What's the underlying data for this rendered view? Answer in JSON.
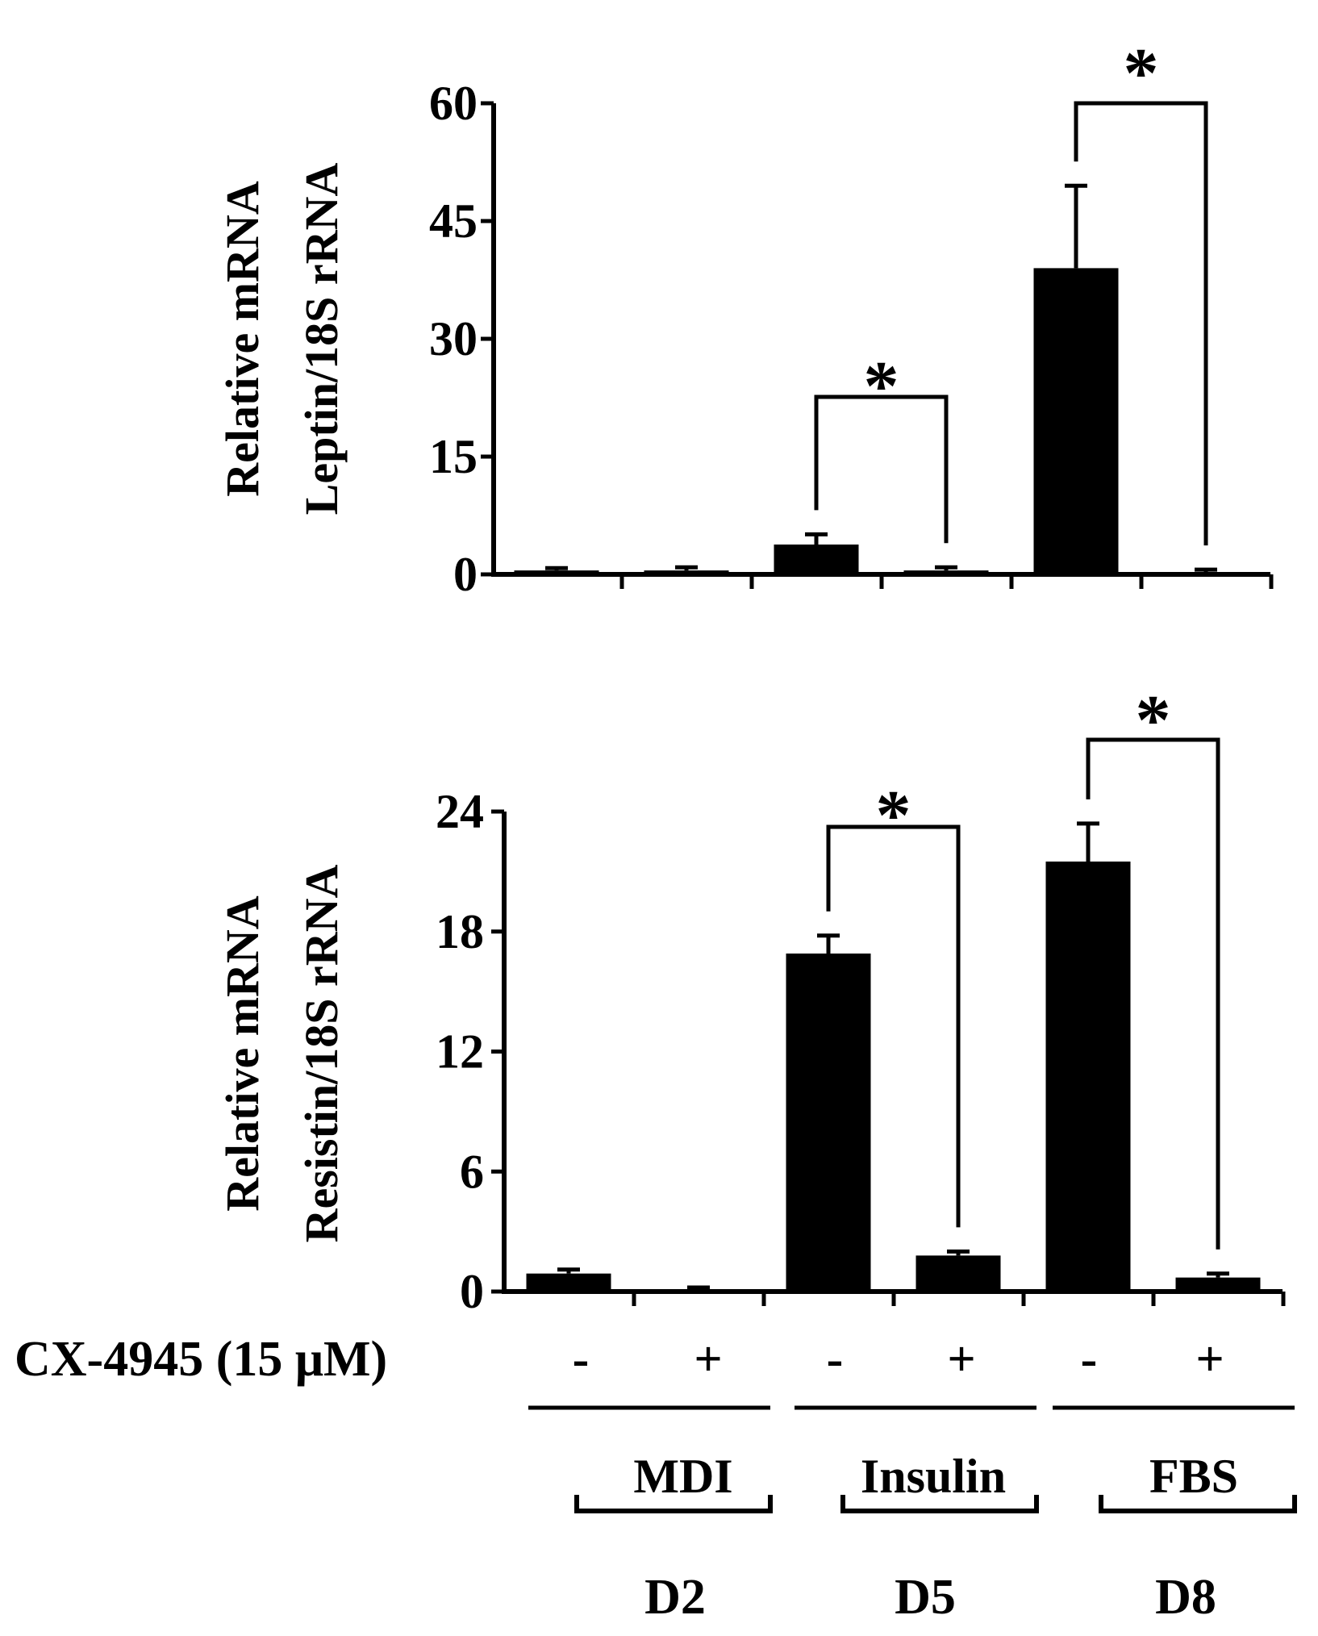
{
  "chart_data": [
    {
      "type": "bar",
      "ylabel": [
        "Relative mRNA",
        "Leptin/18S rRNA"
      ],
      "ylim": [
        0,
        60
      ],
      "yticks": [
        0,
        15,
        30,
        45,
        60
      ],
      "categories": [
        "MDI -",
        "MDI +",
        "Insulin -",
        "Insulin +",
        "FBS -",
        "FBS +"
      ],
      "values": [
        0.5,
        0.5,
        3.8,
        0.5,
        39,
        0.3
      ],
      "errors": [
        0.3,
        0.4,
        1.3,
        0.4,
        10.5,
        0.3
      ],
      "bar_color": "#000000",
      "significance": [
        {
          "from": 2,
          "to": 3,
          "label": "*"
        },
        {
          "from": 4,
          "to": 5,
          "label": "*"
        }
      ]
    },
    {
      "type": "bar",
      "ylabel": [
        "Relative mRNA",
        "Resistin/18S rRNA"
      ],
      "ylim": [
        0,
        24
      ],
      "yticks": [
        0,
        6,
        12,
        18,
        24
      ],
      "categories": [
        "MDI -",
        "MDI +",
        "Insulin -",
        "Insulin +",
        "FBS -",
        "FBS +"
      ],
      "values": [
        0.9,
        0.1,
        16.9,
        1.8,
        21.5,
        0.7
      ],
      "errors": [
        0.2,
        0.1,
        0.9,
        0.2,
        1.9,
        0.2
      ],
      "bar_color": "#000000",
      "significance": [
        {
          "from": 2,
          "to": 3,
          "label": "*"
        },
        {
          "from": 4,
          "to": 5,
          "label": "*"
        }
      ]
    }
  ],
  "treatment": {
    "label": "CX-4945 (15 μM)",
    "signs": [
      "-",
      "+",
      "-",
      "+",
      "-",
      "+"
    ]
  },
  "groups": [
    {
      "condition": "MDI",
      "day": "D2"
    },
    {
      "condition": "Insulin",
      "day": "D5"
    },
    {
      "condition": "FBS",
      "day": "D8"
    }
  ]
}
